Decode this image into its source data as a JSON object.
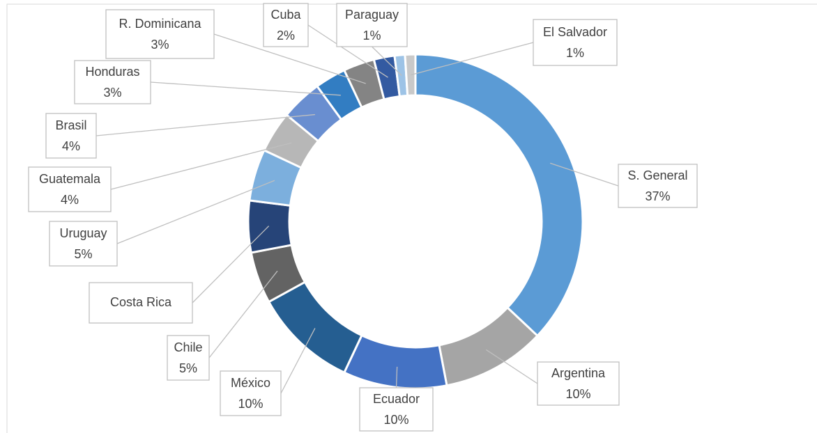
{
  "chart_data": {
    "type": "donut",
    "categories": [
      "S. General",
      "Argentina",
      "Ecuador",
      "México",
      "Chile",
      "Costa Rica",
      "Uruguay",
      "Guatemala",
      "Brasil",
      "Honduras",
      "R. Dominicana",
      "Cuba",
      "Paraguay",
      "El Salvador"
    ],
    "values": [
      37,
      10,
      10,
      10,
      5,
      5,
      5,
      4,
      4,
      3,
      3,
      2,
      1,
      1
    ],
    "value_labels": [
      "37%",
      "10%",
      "10%",
      "10%",
      "5%",
      null,
      "5%",
      "4%",
      "4%",
      "3%",
      "3%",
      "2%",
      "1%",
      "1%"
    ],
    "colors": [
      "#5b9bd5",
      "#a5a5a5",
      "#4472c4",
      "#255e91",
      "#636363",
      "#264478",
      "#7cafdd",
      "#b7b7b7",
      "#698ed0",
      "#327dc2",
      "#848484",
      "#335aa1",
      "#9dc3e6",
      "#c9c9c9"
    ]
  }
}
